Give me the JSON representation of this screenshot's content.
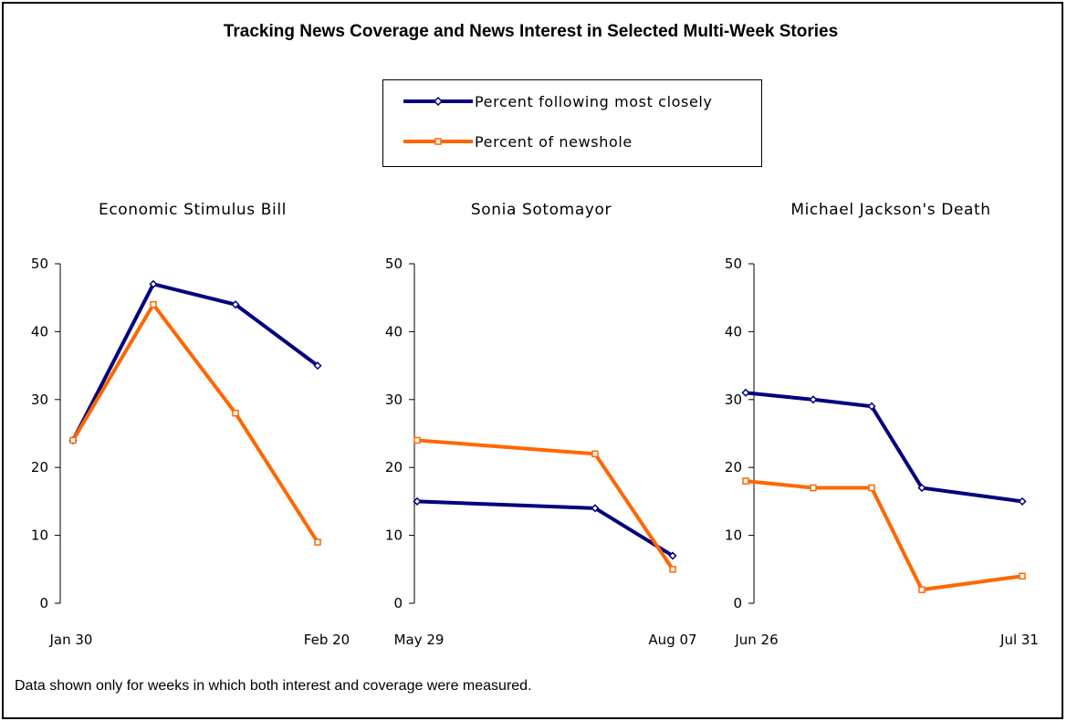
{
  "title": "Tracking News Coverage and News Interest in Selected Multi-Week Stories",
  "legend": [
    {
      "label": "Percent following most closely",
      "color": "#000080",
      "marker": "diamond"
    },
    {
      "label": "Percent of newshole",
      "color": "#ff6600",
      "marker": "square"
    }
  ],
  "footnote": "Data shown only for weeks in which both interest and coverage were measured.",
  "chart_data": [
    {
      "type": "line",
      "title": "Economic Stimulus Bill",
      "x": [
        0,
        1,
        2,
        3
      ],
      "x_tick_labels": [
        "Jan 30",
        "",
        "",
        "Feb 20"
      ],
      "ylim": [
        0,
        50
      ],
      "yticks": [
        0,
        10,
        20,
        30,
        40,
        50
      ],
      "grid": false,
      "legend": "top-center",
      "series": [
        {
          "name": "Percent following most closely",
          "values": [
            24,
            47,
            44,
            35
          ]
        },
        {
          "name": "Percent of newshole",
          "values": [
            24,
            44,
            28,
            9
          ]
        }
      ]
    },
    {
      "type": "line",
      "title": "Sonia Sotomayor",
      "x": [
        0,
        1,
        2
      ],
      "x_tick_labels": [
        "May 29",
        "",
        "Aug 07"
      ],
      "ylim": [
        0,
        50
      ],
      "yticks": [
        0,
        10,
        20,
        30,
        40,
        50
      ],
      "grid": false,
      "legend": "top-center",
      "series": [
        {
          "name": "Percent following most closely",
          "values": [
            15,
            14,
            7
          ]
        },
        {
          "name": "Percent of newshole",
          "values": [
            24,
            22,
            5
          ]
        }
      ]
    },
    {
      "type": "line",
      "title": "Michael Jackson's Death",
      "x": [
        0,
        1,
        2,
        3,
        4
      ],
      "x_tick_labels": [
        "Jun 26",
        "",
        "",
        "",
        "Jul 31"
      ],
      "ylim": [
        0,
        50
      ],
      "yticks": [
        0,
        10,
        20,
        30,
        40,
        50
      ],
      "grid": false,
      "legend": "top-center",
      "series": [
        {
          "name": "Percent following most closely",
          "values": [
            31,
            30,
            29,
            17,
            15
          ]
        },
        {
          "name": "Percent of newshole",
          "values": [
            18,
            17,
            17,
            2,
            4
          ]
        }
      ]
    }
  ]
}
